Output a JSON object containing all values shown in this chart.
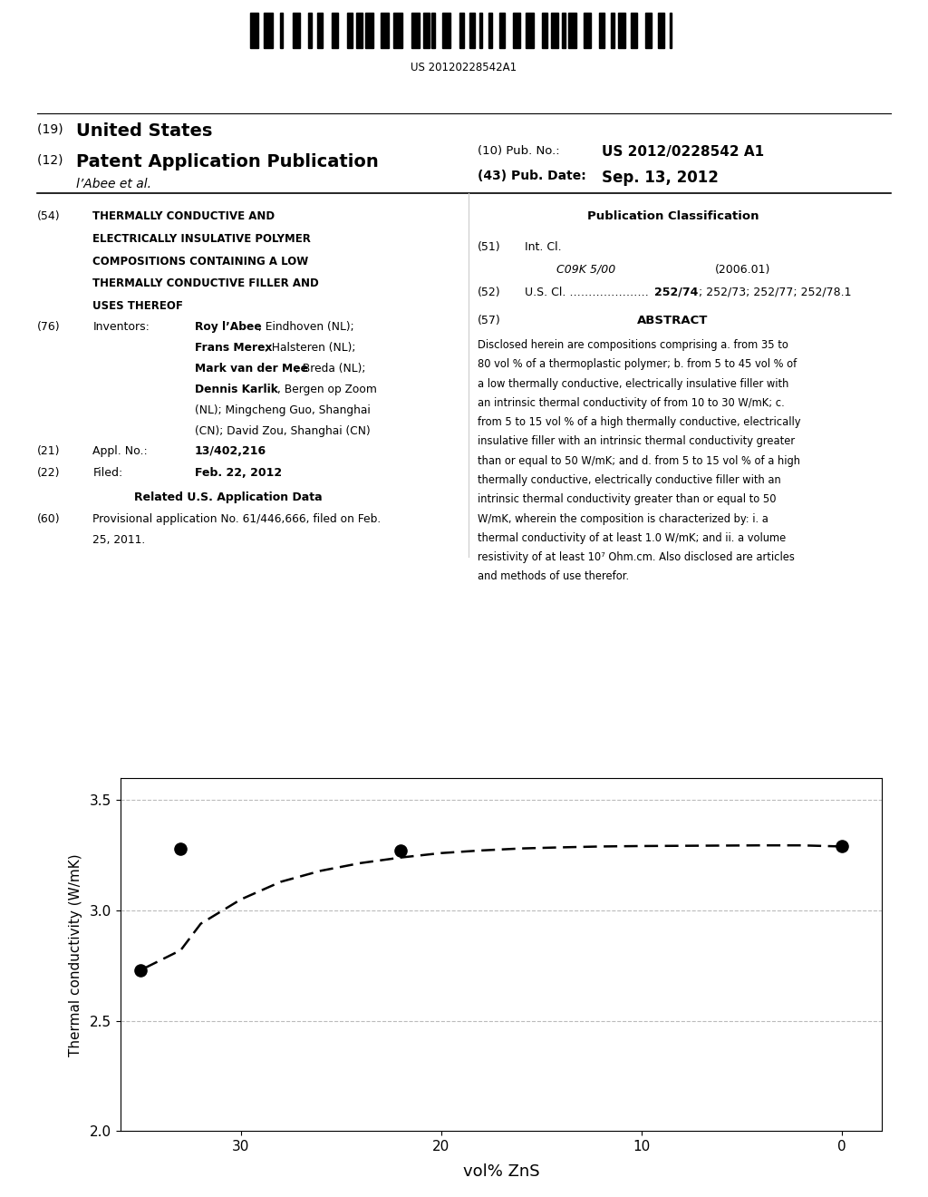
{
  "patent_number": "US 20120228542A1",
  "pub_no_label": "(10) Pub. No.:",
  "pub_no_value": "US 2012/0228542 A1",
  "pub_date_label": "(43) Pub. Date:",
  "pub_date_value": "Sep. 13, 2012",
  "country": "United States",
  "kind": "Patent Application Publication",
  "inventors_label": "l’Abee et al.",
  "appl_no_value": "13/402,216",
  "filed_value": "Feb. 22, 2012",
  "int_cl_value": "C09K 5/00",
  "int_cl_date": "(2006.01)",
  "data_x": [
    35,
    33,
    22,
    0
  ],
  "data_y": [
    2.73,
    3.28,
    3.27,
    3.29
  ],
  "curve_x": [
    0,
    2,
    4,
    6,
    8,
    10,
    12,
    14,
    16,
    18,
    20,
    22,
    24,
    26,
    28,
    30,
    32,
    33,
    35
  ],
  "curve_y": [
    3.29,
    3.295,
    3.295,
    3.294,
    3.293,
    3.292,
    3.29,
    3.286,
    3.281,
    3.272,
    3.26,
    3.24,
    3.215,
    3.18,
    3.13,
    3.05,
    2.94,
    2.82,
    2.73
  ],
  "ylim": [
    2.0,
    3.6
  ],
  "yticks": [
    2.0,
    2.5,
    3.0,
    3.5
  ],
  "xticks": [
    30,
    20,
    10,
    0
  ],
  "xlabel": "vol% ZnS",
  "ylabel": "Thermal conductivity (W/mK)",
  "grid_color": "#aaaaaa",
  "dot_color": "#000000",
  "curve_color": "#000000",
  "bg_color": "#ffffff",
  "fig_width": 10.24,
  "fig_height": 13.2
}
